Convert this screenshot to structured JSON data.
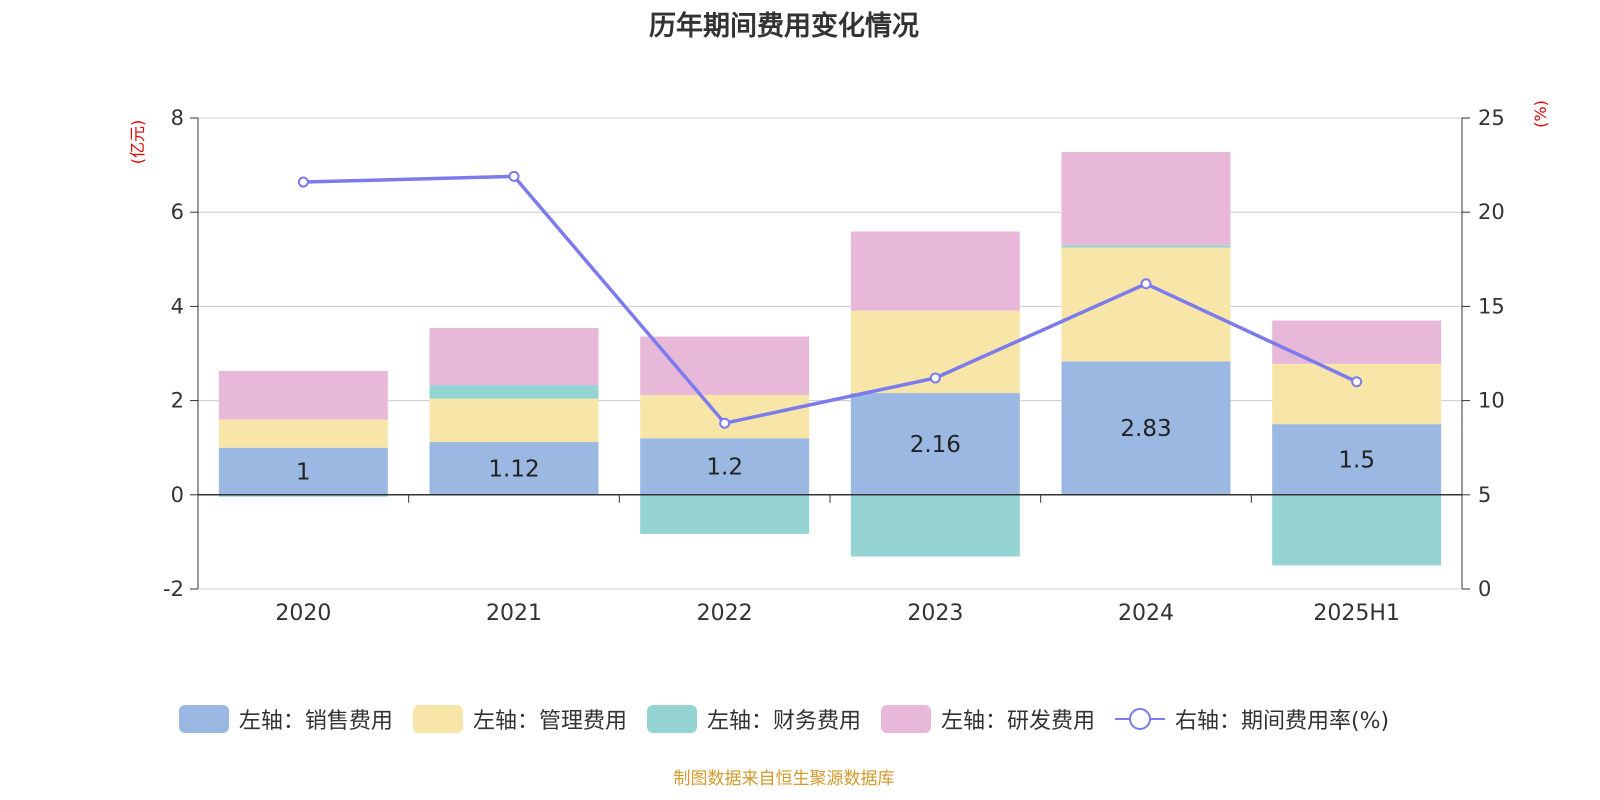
{
  "title": "历年期间费用变化情况",
  "source": "制图数据来自恒生聚源数据库",
  "colors": {
    "sales": "#9bb8e2",
    "admin": "#f8e6a8",
    "finance": "#96d4d4",
    "rd": "#e8b8d8",
    "rate": "#7b7bec",
    "axis_label": "#e00000",
    "grid": "#cccccc"
  },
  "chart_data": {
    "type": "bar",
    "stacked": true,
    "categories": [
      "2020",
      "2021",
      "2022",
      "2023",
      "2024",
      "2025H1"
    ],
    "left_axis": {
      "label": "(亿元)",
      "ylim": [
        -2,
        8
      ],
      "ticks": [
        -2,
        0,
        2,
        4,
        6,
        8
      ]
    },
    "right_axis": {
      "label": "(%)",
      "ylim": [
        0,
        25
      ],
      "ticks": [
        0,
        5,
        10,
        15,
        20,
        25
      ]
    },
    "series": [
      {
        "name": "左轴：销售费用",
        "key": "sales",
        "axis": "left",
        "values": [
          1.0,
          1.12,
          1.2,
          2.16,
          2.83,
          1.5
        ],
        "labels": [
          "1",
          "1.12",
          "1.2",
          "2.16",
          "2.83",
          "1.5"
        ]
      },
      {
        "name": "左轴：管理费用",
        "key": "admin",
        "axis": "left",
        "values": [
          0.6,
          0.92,
          0.92,
          1.75,
          2.42,
          1.28
        ]
      },
      {
        "name": "左轴：财务费用",
        "key": "finance",
        "axis": "left",
        "values": [
          -0.04,
          0.29,
          -0.83,
          -1.31,
          0.05,
          -1.5
        ]
      },
      {
        "name": "左轴：研发费用",
        "key": "rd",
        "axis": "left",
        "values": [
          1.03,
          1.21,
          1.24,
          1.68,
          1.98,
          0.92
        ]
      },
      {
        "name": "右轴：期间费用率(%)",
        "key": "rate",
        "axis": "right",
        "type": "line",
        "values": [
          21.6,
          21.9,
          8.8,
          11.2,
          16.2,
          11.0
        ]
      }
    ],
    "grid": true,
    "legend_position": "bottom"
  }
}
